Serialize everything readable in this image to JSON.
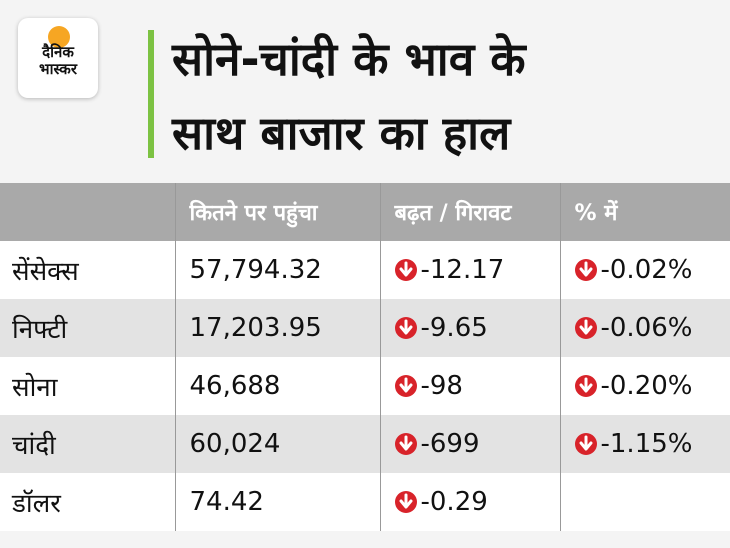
{
  "header": {
    "logo": [
      "दैनिक",
      "भास्कर"
    ],
    "title": [
      "सोने-चांदी के भाव के",
      "साथ बाजार का हाल"
    ]
  },
  "table": {
    "columns": [
      "कितने पर पहुंचा",
      "बढ़त / गिरावट",
      "% में"
    ],
    "rows": [
      [
        "सेंसेक्स",
        "57,794.32",
        "-12.17",
        "-0.02%"
      ],
      [
        "निफ्टी",
        "17,203.95",
        "-9.65",
        "-0.06%"
      ],
      [
        "सोना",
        "46,688",
        "-98",
        "-0.20%"
      ],
      [
        "चांदी",
        "60,024",
        "-699",
        "-1.15%"
      ],
      [
        "डॉलर",
        "74.42",
        "-0.29"
      ]
    ]
  }
}
